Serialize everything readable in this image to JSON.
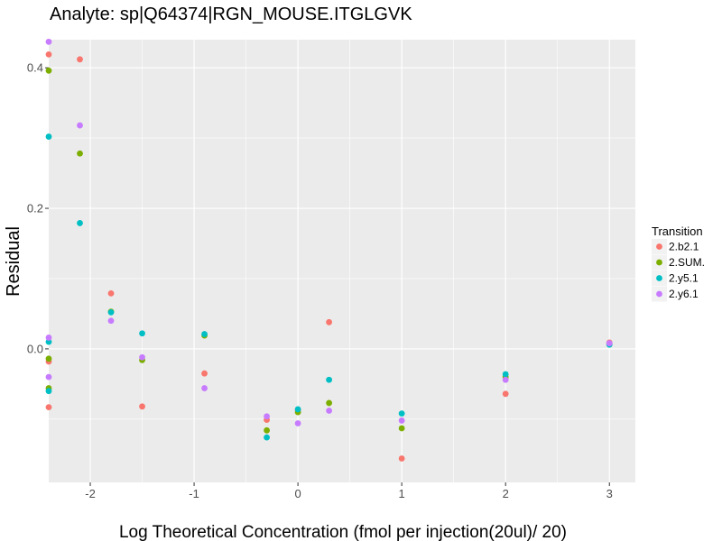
{
  "chart_data": {
    "type": "scatter",
    "title": "Analyte: sp|Q64374|RGN_MOUSE.ITGLGVK",
    "xlabel": "Log Theoretical Concentration (fmol per injection(20ul)/ 20)",
    "ylabel": "Residual",
    "xlim": [
      -2.4,
      3.25
    ],
    "ylim": [
      -0.19,
      0.44
    ],
    "x_ticks": [
      -2,
      -1,
      0,
      1,
      2,
      3
    ],
    "y_ticks": [
      0.0,
      0.2,
      0.4
    ],
    "x_tick_labels": [
      "-2",
      "-1",
      "0",
      "1",
      "2",
      "3"
    ],
    "y_tick_labels": [
      "0.0",
      "0.2",
      "0.4"
    ],
    "legend_title": "Transition",
    "legend_position": "right",
    "background": "#ebebeb",
    "series": [
      {
        "name": "2.b2.1",
        "color": "#F8766D",
        "points": [
          [
            -2.4,
            0.419
          ],
          [
            -2.4,
            -0.018
          ],
          [
            -2.4,
            -0.083
          ],
          [
            -2.1,
            0.412
          ],
          [
            -1.8,
            0.079
          ],
          [
            -1.5,
            -0.082
          ],
          [
            -0.9,
            -0.035
          ],
          [
            -0.3,
            -0.101
          ],
          [
            0.0,
            -0.087
          ],
          [
            0.3,
            0.038
          ],
          [
            1.0,
            -0.156
          ],
          [
            2.0,
            -0.064
          ],
          [
            3.0,
            0.009
          ]
        ]
      },
      {
        "name": "2.SUM.",
        "color": "#7CAE00",
        "points": [
          [
            -2.4,
            0.396
          ],
          [
            -2.4,
            -0.014
          ],
          [
            -2.4,
            -0.056
          ],
          [
            -2.1,
            0.278
          ],
          [
            -1.8,
            0.053
          ],
          [
            -1.5,
            -0.016
          ],
          [
            -0.9,
            0.019
          ],
          [
            -0.3,
            -0.116
          ],
          [
            0.0,
            -0.09
          ],
          [
            0.3,
            -0.077
          ],
          [
            1.0,
            -0.113
          ],
          [
            2.0,
            -0.04
          ],
          [
            3.0,
            0.007
          ]
        ]
      },
      {
        "name": "2.y5.1",
        "color": "#00BFC4",
        "points": [
          [
            -2.4,
            0.302
          ],
          [
            -2.4,
            0.01
          ],
          [
            -2.4,
            -0.06
          ],
          [
            -2.1,
            0.179
          ],
          [
            -1.8,
            0.052
          ],
          [
            -1.5,
            0.022
          ],
          [
            -0.9,
            0.021
          ],
          [
            -0.3,
            -0.126
          ],
          [
            0.0,
            -0.086
          ],
          [
            0.3,
            -0.044
          ],
          [
            1.0,
            -0.092
          ],
          [
            2.0,
            -0.036
          ],
          [
            3.0,
            0.006
          ]
        ]
      },
      {
        "name": "2.y6.1",
        "color": "#C77CFF",
        "points": [
          [
            -2.4,
            0.437
          ],
          [
            -2.4,
            0.016
          ],
          [
            -2.4,
            -0.04
          ],
          [
            -2.1,
            0.318
          ],
          [
            -1.8,
            0.04
          ],
          [
            -1.5,
            -0.012
          ],
          [
            -0.9,
            -0.056
          ],
          [
            -0.3,
            -0.096
          ],
          [
            0.0,
            -0.106
          ],
          [
            0.3,
            -0.088
          ],
          [
            1.0,
            -0.102
          ],
          [
            2.0,
            -0.044
          ],
          [
            3.0,
            0.008
          ]
        ]
      }
    ]
  }
}
